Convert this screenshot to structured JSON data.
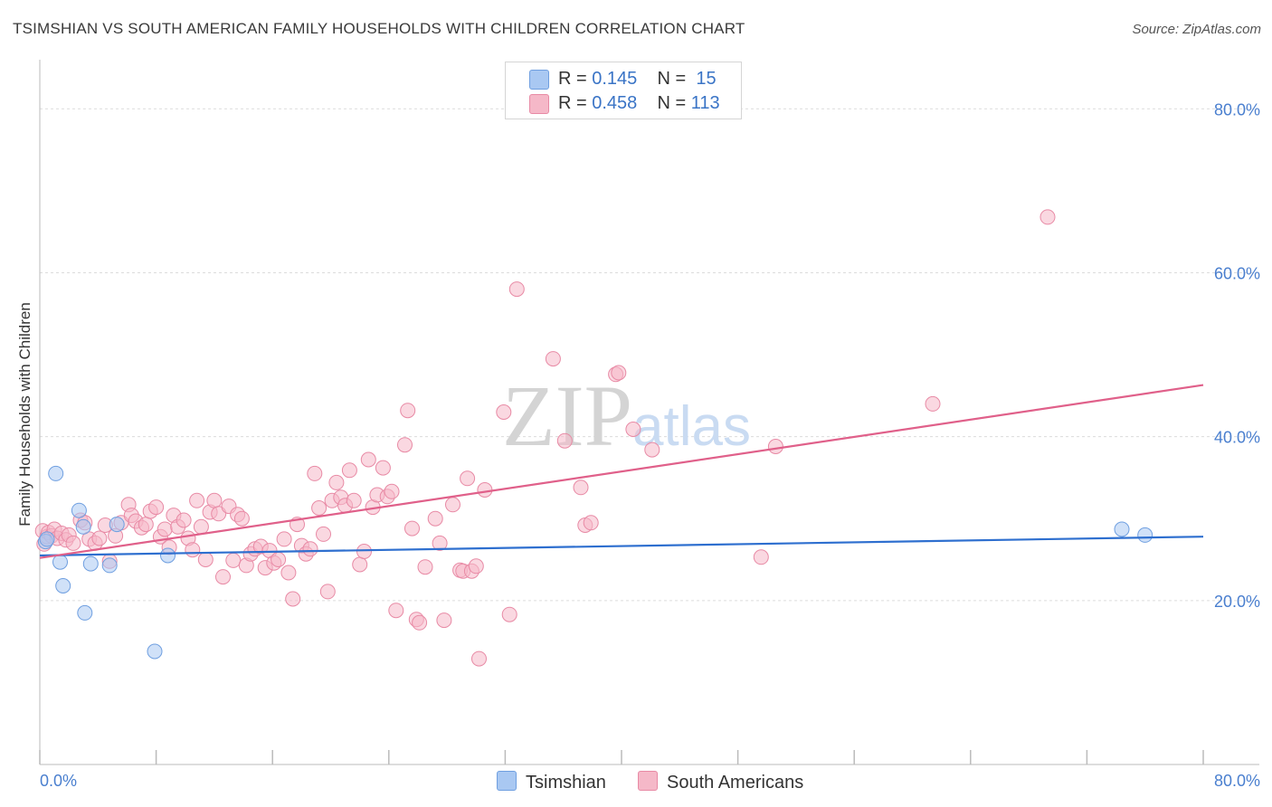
{
  "header": {
    "title": "TSIMSHIAN VS SOUTH AMERICAN FAMILY HOUSEHOLDS WITH CHILDREN CORRELATION CHART",
    "source": "Source: ZipAtlas.com"
  },
  "watermark": "ZIPatlas",
  "legend": {
    "rows": [
      {
        "r_label": "R =",
        "r_value": "0.145",
        "n_label": "N =",
        "n_value": "15",
        "color": "#a9c8f2"
      },
      {
        "r_label": "R =",
        "r_value": "0.458",
        "n_label": "N =",
        "n_value": "113",
        "color": "#f5b8c8"
      }
    ]
  },
  "bottom_legend": {
    "items": [
      {
        "label": "Tsimshian",
        "color": "#a9c8f2"
      },
      {
        "label": "South Americans",
        "color": "#f5b8c8"
      }
    ]
  },
  "chart_data": {
    "type": "scatter",
    "title": "TSIMSHIAN VS SOUTH AMERICAN FAMILY HOUSEHOLDS WITH CHILDREN CORRELATION CHART",
    "xlabel": "",
    "ylabel": "Family Households with Children",
    "xlim": [
      0,
      80
    ],
    "ylim": [
      0,
      85
    ],
    "x_tick_labels": [
      "0.0%",
      "80.0%"
    ],
    "y_ticks": [
      20,
      40,
      60,
      80
    ],
    "y_tick_labels": [
      "20.0%",
      "40.0%",
      "60.0%",
      "80.0%"
    ],
    "grid": true,
    "series": [
      {
        "name": "Tsimshian",
        "color": "#6f9fe0",
        "fill": "#a9c8f2",
        "line_color": "#2e6fcf",
        "trend": [
          [
            0,
            25.5
          ],
          [
            80,
            27.8
          ]
        ],
        "points": [
          [
            0.4,
            27.2
          ],
          [
            0.5,
            27.5
          ],
          [
            1.1,
            35.5
          ],
          [
            1.4,
            24.7
          ],
          [
            1.6,
            21.8
          ],
          [
            2.7,
            31.0
          ],
          [
            3.1,
            18.5
          ],
          [
            3.5,
            24.5
          ],
          [
            4.8,
            24.3
          ],
          [
            5.3,
            29.3
          ],
          [
            7.9,
            13.8
          ],
          [
            8.8,
            25.5
          ],
          [
            3.0,
            29.0
          ],
          [
            74.4,
            28.7
          ],
          [
            76.0,
            28.0
          ]
        ]
      },
      {
        "name": "South Americans",
        "color": "#e88aa5",
        "fill": "#f5b8c8",
        "line_color": "#e0608a",
        "trend": [
          [
            0,
            25.2
          ],
          [
            80,
            46.3
          ]
        ],
        "points": [
          [
            0.2,
            28.5
          ],
          [
            0.3,
            26.9
          ],
          [
            0.5,
            27.8
          ],
          [
            0.6,
            28.3
          ],
          [
            0.8,
            27.9
          ],
          [
            1.0,
            28.7
          ],
          [
            1.2,
            27.6
          ],
          [
            1.5,
            28.2
          ],
          [
            1.8,
            27.4
          ],
          [
            2.0,
            28.0
          ],
          [
            2.3,
            27.0
          ],
          [
            2.8,
            29.8
          ],
          [
            3.1,
            29.5
          ],
          [
            3.4,
            27.5
          ],
          [
            3.8,
            27.0
          ],
          [
            4.1,
            27.6
          ],
          [
            4.5,
            29.2
          ],
          [
            4.8,
            24.8
          ],
          [
            5.2,
            27.9
          ],
          [
            5.6,
            29.5
          ],
          [
            6.1,
            31.7
          ],
          [
            6.3,
            30.4
          ],
          [
            6.6,
            29.7
          ],
          [
            7.0,
            28.9
          ],
          [
            7.3,
            29.3
          ],
          [
            7.6,
            30.9
          ],
          [
            8.0,
            31.4
          ],
          [
            8.3,
            27.8
          ],
          [
            8.6,
            28.7
          ],
          [
            8.9,
            26.5
          ],
          [
            9.2,
            30.4
          ],
          [
            9.5,
            29.0
          ],
          [
            9.9,
            29.8
          ],
          [
            10.2,
            27.6
          ],
          [
            10.5,
            26.2
          ],
          [
            10.8,
            32.2
          ],
          [
            11.1,
            29.0
          ],
          [
            11.4,
            25.0
          ],
          [
            11.7,
            30.8
          ],
          [
            12.0,
            32.2
          ],
          [
            12.3,
            30.6
          ],
          [
            12.6,
            22.9
          ],
          [
            13.0,
            31.5
          ],
          [
            13.3,
            24.9
          ],
          [
            13.6,
            30.5
          ],
          [
            13.9,
            30.0
          ],
          [
            14.2,
            24.3
          ],
          [
            14.5,
            25.7
          ],
          [
            14.8,
            26.3
          ],
          [
            15.2,
            26.6
          ],
          [
            15.5,
            24.0
          ],
          [
            15.8,
            26.1
          ],
          [
            16.1,
            24.6
          ],
          [
            16.4,
            25.0
          ],
          [
            16.8,
            27.5
          ],
          [
            17.1,
            23.4
          ],
          [
            17.4,
            20.2
          ],
          [
            17.7,
            29.3
          ],
          [
            18.0,
            26.7
          ],
          [
            18.3,
            25.7
          ],
          [
            18.6,
            26.3
          ],
          [
            18.9,
            35.5
          ],
          [
            19.2,
            31.3
          ],
          [
            19.5,
            28.1
          ],
          [
            19.8,
            21.1
          ],
          [
            20.1,
            32.2
          ],
          [
            20.4,
            34.4
          ],
          [
            20.7,
            32.6
          ],
          [
            21.0,
            31.6
          ],
          [
            21.3,
            35.9
          ],
          [
            21.6,
            32.2
          ],
          [
            22.0,
            24.4
          ],
          [
            22.3,
            26.0
          ],
          [
            22.6,
            37.2
          ],
          [
            22.9,
            31.4
          ],
          [
            23.2,
            32.9
          ],
          [
            23.6,
            36.2
          ],
          [
            23.9,
            32.7
          ],
          [
            24.2,
            33.3
          ],
          [
            24.5,
            18.8
          ],
          [
            25.1,
            39.0
          ],
          [
            25.3,
            43.2
          ],
          [
            25.6,
            28.8
          ],
          [
            25.9,
            17.7
          ],
          [
            26.1,
            17.3
          ],
          [
            26.5,
            24.1
          ],
          [
            27.2,
            30.0
          ],
          [
            27.5,
            27.0
          ],
          [
            27.8,
            17.6
          ],
          [
            28.4,
            31.7
          ],
          [
            28.9,
            23.7
          ],
          [
            29.1,
            23.6
          ],
          [
            29.4,
            34.9
          ],
          [
            29.7,
            23.6
          ],
          [
            30.0,
            24.2
          ],
          [
            30.2,
            12.9
          ],
          [
            30.6,
            33.5
          ],
          [
            31.9,
            43.0
          ],
          [
            32.3,
            18.3
          ],
          [
            32.8,
            58.0
          ],
          [
            35.3,
            49.5
          ],
          [
            36.1,
            39.5
          ],
          [
            37.2,
            33.8
          ],
          [
            37.5,
            29.2
          ],
          [
            37.9,
            29.5
          ],
          [
            39.6,
            47.6
          ],
          [
            39.8,
            47.8
          ],
          [
            40.8,
            40.9
          ],
          [
            42.1,
            38.4
          ],
          [
            49.6,
            25.3
          ],
          [
            50.6,
            38.8
          ],
          [
            61.4,
            44.0
          ],
          [
            69.3,
            66.8
          ]
        ]
      }
    ]
  }
}
